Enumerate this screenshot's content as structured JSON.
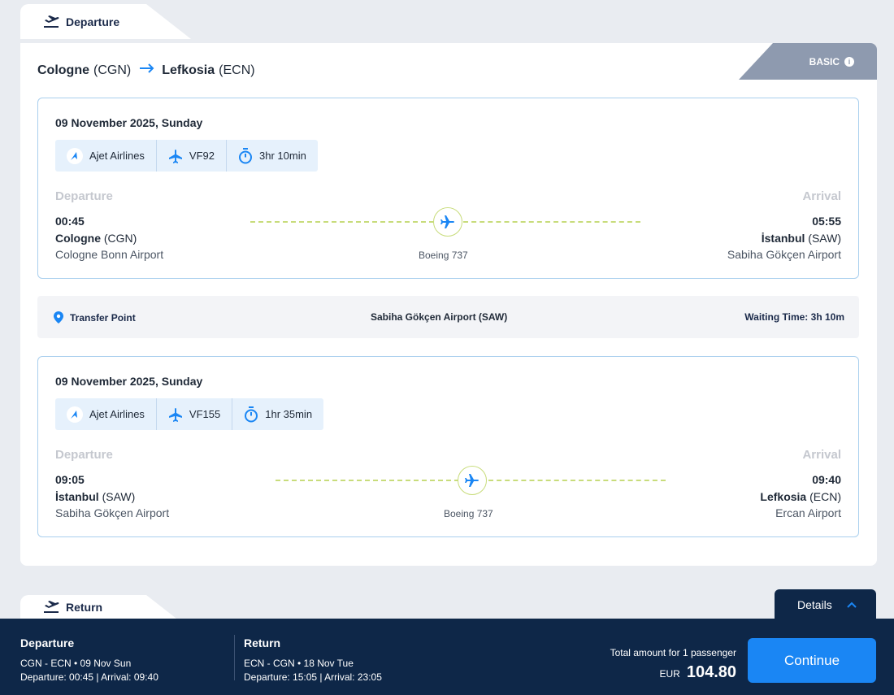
{
  "tabs": {
    "departure": "Departure",
    "return": "Return"
  },
  "route": {
    "from_city": "Cologne",
    "from_code": "(CGN)",
    "to_city": "Lefkosia",
    "to_code": "(ECN)"
  },
  "fare_badge": "BASIC",
  "segments": [
    {
      "date": "09 November 2025, Sunday",
      "airline": "Ajet Airlines",
      "flight_no": "VF92",
      "duration": "3hr 10min",
      "departure_label": "Departure",
      "arrival_label": "Arrival",
      "dep_time": "00:45",
      "dep_city": "Cologne",
      "dep_code": "(CGN)",
      "dep_airport": "Cologne Bonn Airport",
      "arr_time": "05:55",
      "arr_city": "İstanbul",
      "arr_code": "(SAW)",
      "arr_airport": "Sabiha Gökçen Airport",
      "aircraft": "Boeing 737"
    },
    {
      "date": "09 November 2025, Sunday",
      "airline": "Ajet Airlines",
      "flight_no": "VF155",
      "duration": "1hr 35min",
      "departure_label": "Departure",
      "arrival_label": "Arrival",
      "dep_time": "09:05",
      "dep_city": "İstanbul",
      "dep_code": "(SAW)",
      "dep_airport": "Sabiha Gökçen Airport",
      "arr_time": "09:40",
      "arr_city": "Lefkosia",
      "arr_code": "(ECN)",
      "arr_airport": "Ercan Airport",
      "aircraft": "Boeing 737"
    }
  ],
  "transfer": {
    "label": "Transfer Point",
    "airport": "Sabiha Gökçen Airport (SAW)",
    "waiting_label": "Waiting Time:",
    "waiting_value": "3h 10m"
  },
  "details_label": "Details",
  "summary": {
    "departure": {
      "title": "Departure",
      "line1": "CGN - ECN • 09 Nov Sun",
      "line2": "Departure: 00:45 | Arrival: 09:40"
    },
    "return": {
      "title": "Return",
      "line1": "ECN - CGN • 18 Nov Tue",
      "line2": "Departure: 15:05 | Arrival: 23:05"
    },
    "total_label": "Total amount for 1 passenger",
    "currency": "EUR",
    "amount": "104.80",
    "continue_label": "Continue"
  },
  "icons": {
    "tab": "plane-takeoff-icon",
    "info": "info-icon",
    "airline": "ajet-logo-icon",
    "flight": "plane-icon",
    "duration": "stopwatch-icon",
    "transfer": "location-pin-icon",
    "details": "chevron-up-icon"
  },
  "colors": {
    "accent": "#1a86f4",
    "navy": "#0e2748",
    "badge": "#8e9aaf",
    "route_line": "#c8dc7b"
  }
}
